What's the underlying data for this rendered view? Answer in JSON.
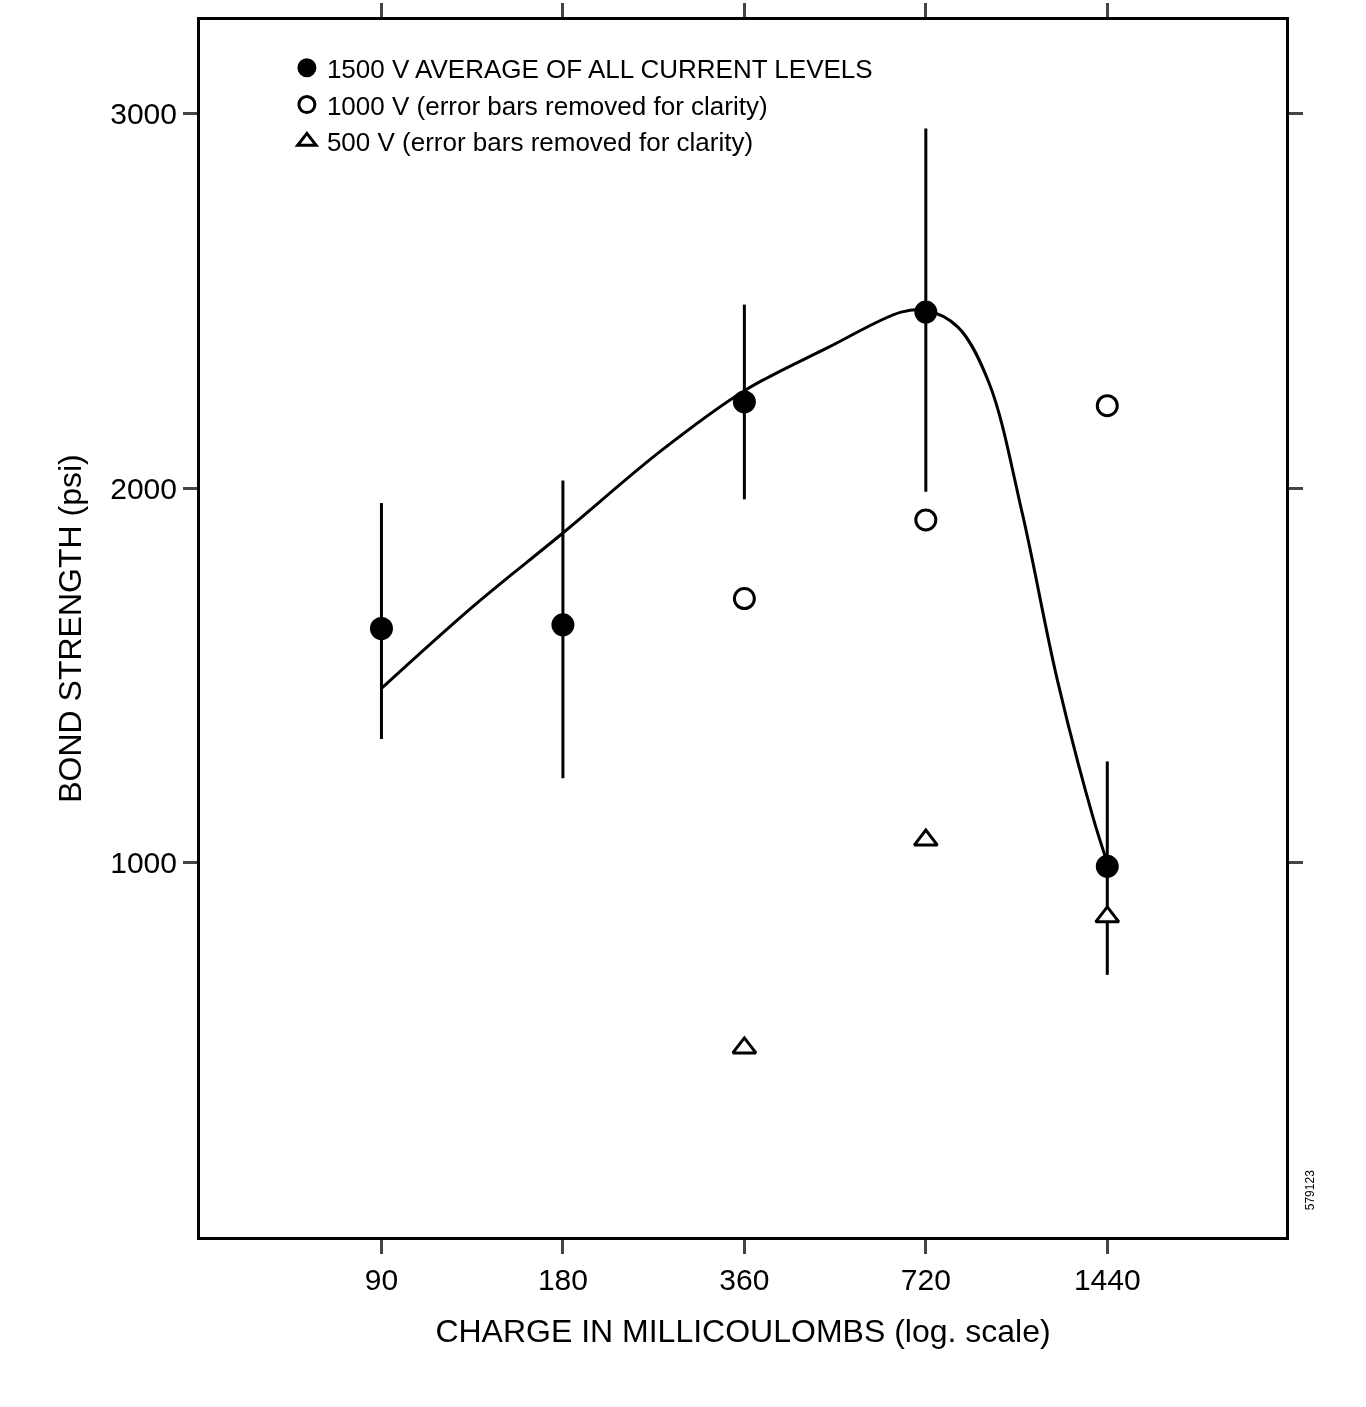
{
  "chart_data": {
    "type": "scatter",
    "xlabel": "CHARGE IN MILLICOULOMBS (log. scale)",
    "ylabel": "BOND STRENGTH (psi)",
    "x": [
      90,
      180,
      360,
      720,
      1440
    ],
    "series": [
      {
        "name": "1500 V AVERAGE OF ALL CURRENT LEVELS",
        "color": "#000000",
        "marker": "circle",
        "values": [
          1625,
          1635,
          2230,
          2470,
          990
        ],
        "errors": [
          [
            1330,
            1960
          ],
          [
            1225,
            2020
          ],
          [
            1970,
            2490
          ],
          [
            1990,
            2960
          ],
          [
            700,
            1270
          ]
        ]
      },
      {
        "name": "1000 V (error bars removed for clarity)",
        "color": "#ffffff",
        "marker": "circle",
        "x": [
          360,
          720,
          1440
        ],
        "values": [
          1705,
          1915,
          2220
        ]
      },
      {
        "name": "500 V (error bars removed for clarity)",
        "color": "#ffffff",
        "marker": "triangle",
        "x": [
          360,
          720,
          1440
        ],
        "values": [
          505,
          1060,
          855
        ]
      },
      {
        "type": "line",
        "color": "#000000",
        "marker": "none",
        "x": [
          90,
          129,
          180,
          262,
          360,
          495,
          655,
          720,
          814,
          917,
          1040,
          1189,
          1364,
          1440
        ],
        "values": [
          1465,
          1690,
          1880,
          2100,
          2260,
          2375,
          2470,
          2475,
          2430,
          2280,
          1935,
          1490,
          1120,
          1000
        ]
      }
    ],
    "log": "x",
    "xlim": [
      45,
      2850
    ],
    "xticks": [
      90,
      180,
      360,
      720,
      1440
    ],
    "ylim": [
      0,
      3250
    ],
    "yticks": [
      1000,
      2000,
      3000
    ],
    "grid": false,
    "legend": "top left",
    "annotations": [
      "579123"
    ]
  }
}
